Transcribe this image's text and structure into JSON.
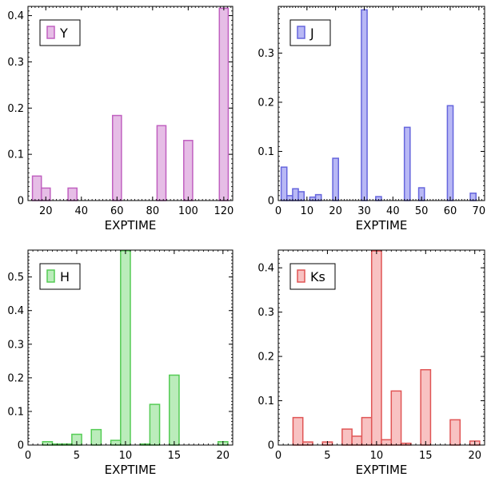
{
  "chart_data": [
    {
      "type": "bar",
      "legend": "Y",
      "legend_position": "top-left",
      "xlabel": "EXPTIME",
      "ylabel": "",
      "xlim": [
        10,
        125
      ],
      "ylim": [
        0,
        0.42
      ],
      "xticks": [
        20,
        40,
        60,
        80,
        100,
        120
      ],
      "yticks": [
        0,
        0.1,
        0.2,
        0.3,
        0.4
      ],
      "bar_width": 5,
      "x": [
        15,
        20,
        35,
        60,
        85,
        100,
        120
      ],
      "values": [
        0.053,
        0.027,
        0.027,
        0.184,
        0.162,
        0.13,
        0.416
      ],
      "colors": {
        "fill": "#e6bde6",
        "stroke": "#c060c0"
      }
    },
    {
      "type": "bar",
      "legend": "J",
      "legend_position": "top-left",
      "xlabel": "EXPTIME",
      "ylabel": "",
      "xlim": [
        0,
        72
      ],
      "ylim": [
        0,
        0.395
      ],
      "xticks": [
        0,
        10,
        20,
        30,
        40,
        50,
        60,
        70
      ],
      "yticks": [
        0,
        0.1,
        0.2,
        0.3
      ],
      "bar_width": 2,
      "x": [
        2,
        4,
        6,
        8,
        12,
        14,
        20,
        30,
        35,
        45,
        50,
        60,
        68
      ],
      "values": [
        0.068,
        0.01,
        0.024,
        0.018,
        0.007,
        0.012,
        0.086,
        0.388,
        0.008,
        0.149,
        0.026,
        0.193,
        0.015
      ],
      "colors": {
        "fill": "#b8b8f5",
        "stroke": "#6666dd"
      }
    },
    {
      "type": "bar",
      "legend": "H",
      "legend_position": "top-left",
      "xlabel": "EXPTIME",
      "ylabel": "",
      "xlim": [
        0,
        21
      ],
      "ylim": [
        0,
        0.58
      ],
      "xticks": [
        0,
        5,
        10,
        15,
        20
      ],
      "yticks": [
        0,
        0.1,
        0.2,
        0.3,
        0.4,
        0.5
      ],
      "bar_width": 1,
      "x": [
        2,
        3,
        4,
        5,
        7,
        9,
        10,
        12,
        13,
        15,
        20
      ],
      "values": [
        0.01,
        0.003,
        0.003,
        0.032,
        0.046,
        0.014,
        0.578,
        0.003,
        0.121,
        0.208,
        0.01
      ],
      "colors": {
        "fill": "#bbecbb",
        "stroke": "#55cc55"
      }
    },
    {
      "type": "bar",
      "legend": "Ks",
      "legend_position": "top-left",
      "xlabel": "EXPTIME",
      "ylabel": "",
      "xlim": [
        0,
        21
      ],
      "ylim": [
        0,
        0.44
      ],
      "xticks": [
        0,
        5,
        10,
        15,
        20
      ],
      "yticks": [
        0,
        0.1,
        0.2,
        0.3,
        0.4
      ],
      "bar_width": 1,
      "x": [
        2,
        3,
        5,
        7,
        8,
        9,
        10,
        11,
        12,
        13,
        15,
        18,
        20
      ],
      "values": [
        0.062,
        0.007,
        0.007,
        0.036,
        0.02,
        0.062,
        0.438,
        0.012,
        0.122,
        0.004,
        0.17,
        0.057,
        0.009
      ],
      "colors": {
        "fill": "#f8c2c2",
        "stroke": "#e05555"
      }
    }
  ]
}
